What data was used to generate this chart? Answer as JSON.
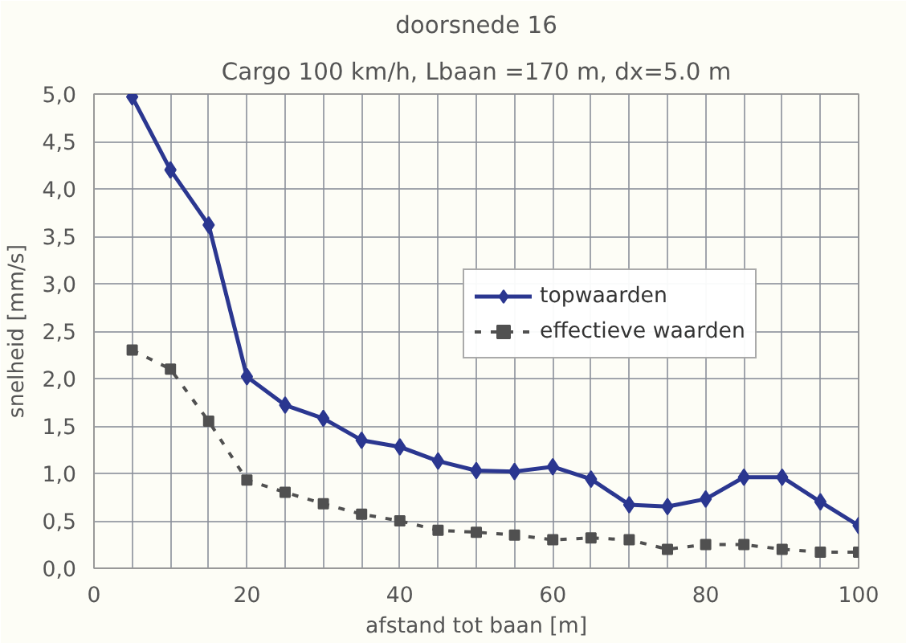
{
  "chart_data": {
    "type": "line",
    "title": "doorsnede 16",
    "subtitle": "Cargo 100 km/h, Lbaan =170 m, dx=5.0 m",
    "xlabel": "afstand tot baan [m]",
    "ylabel": "snelheid [mm/s]",
    "x": [
      5,
      10,
      15,
      20,
      25,
      30,
      35,
      40,
      45,
      50,
      55,
      60,
      65,
      70,
      75,
      80,
      85,
      90,
      95,
      100
    ],
    "series": [
      {
        "name": "topwaarden",
        "color": "#2b3790",
        "marker": "diamond",
        "line_style": "solid",
        "values": [
          4.97,
          4.2,
          3.62,
          2.02,
          1.72,
          1.58,
          1.35,
          1.28,
          1.13,
          1.03,
          1.02,
          1.07,
          0.94,
          0.67,
          0.65,
          0.73,
          0.96,
          0.96,
          0.7,
          0.45
        ]
      },
      {
        "name": "effectieve waarden",
        "color": "#505050",
        "marker": "square",
        "line_style": "dashed",
        "values": [
          2.3,
          2.1,
          1.55,
          0.93,
          0.8,
          0.68,
          0.57,
          0.5,
          0.4,
          0.38,
          0.35,
          0.3,
          0.32,
          0.3,
          0.2,
          0.25,
          0.25,
          0.2,
          0.17,
          0.17
        ]
      }
    ],
    "xlim": [
      0,
      100
    ],
    "ylim": [
      0,
      5
    ],
    "xticks": [
      0,
      {
        "value": 5,
        "label": null
      },
      {
        "value": 10,
        "label": null
      },
      {
        "value": 15,
        "label": null
      },
      20,
      {
        "value": 25,
        "label": null
      },
      {
        "value": 30,
        "label": null
      },
      {
        "value": 35,
        "label": null
      },
      40,
      {
        "value": 45,
        "label": null
      },
      {
        "value": 50,
        "label": null
      },
      {
        "value": 55,
        "label": null
      },
      60,
      {
        "value": 65,
        "label": null
      },
      {
        "value": 70,
        "label": null
      },
      {
        "value": 75,
        "label": null
      },
      80,
      {
        "value": 85,
        "label": null
      },
      {
        "value": 90,
        "label": null
      },
      {
        "value": 95,
        "label": null
      },
      100
    ],
    "yticks": [
      {
        "value": 0,
        "label": "0,0"
      },
      {
        "value": 0.5,
        "label": "0,5"
      },
      {
        "value": 1,
        "label": "1,0"
      },
      {
        "value": 1.5,
        "label": "1,5"
      },
      {
        "value": 2,
        "label": "2,0"
      },
      {
        "value": 2.5,
        "label": "2,5"
      },
      {
        "value": 3,
        "label": "3,0"
      },
      {
        "value": 3.5,
        "label": "3,5"
      },
      {
        "value": 4,
        "label": "4,0"
      },
      {
        "value": 4.5,
        "label": "4,5"
      },
      {
        "value": 5,
        "label": "5,0"
      }
    ],
    "grid": true,
    "legend": "right"
  }
}
